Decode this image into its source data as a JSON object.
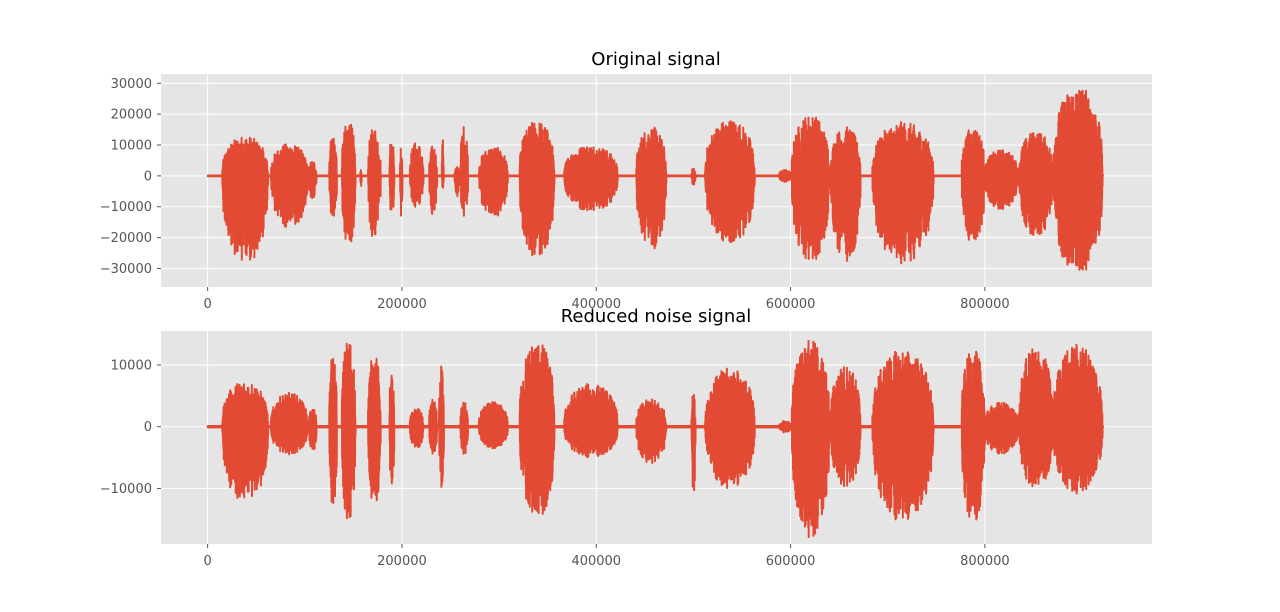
{
  "chart_data": [
    {
      "type": "line",
      "title": "Original signal",
      "xlim": [
        -48000,
        972000
      ],
      "ylim": [
        -36000,
        33000
      ],
      "xticks": [
        0,
        200000,
        400000,
        600000,
        800000
      ],
      "xtick_labels": [
        "0",
        "200000",
        "400000",
        "600000",
        "800000"
      ],
      "yticks": [
        -30000,
        -20000,
        -10000,
        0,
        10000,
        20000,
        30000
      ],
      "ytick_labels": [
        "−30000",
        "−20000",
        "−10000",
        "0",
        "10000",
        "20000",
        "30000"
      ],
      "grid": true,
      "color": "#E24A33",
      "series": [
        {
          "x_start": 0,
          "x_end": 921600,
          "bursts": [
            {
              "x": [
                15000,
                62000
              ],
              "min": -28500,
              "max": 13000
            },
            {
              "x": [
                65000,
                103000
              ],
              "min": -17000,
              "max": 10500
            },
            {
              "x": [
                104000,
                112000
              ],
              "min": -8000,
              "max": 5000
            },
            {
              "x": [
                125000,
                133000
              ],
              "min": -15000,
              "max": 14000
            },
            {
              "x": [
                138000,
                152000
              ],
              "min": -23000,
              "max": 18000
            },
            {
              "x": [
                157000,
                158500
              ],
              "min": -3500,
              "max": 2000
            },
            {
              "x": [
                165000,
                178000
              ],
              "min": -21000,
              "max": 16000
            },
            {
              "x": [
                187000,
                192000
              ],
              "min": -14000,
              "max": 13000
            },
            {
              "x": [
                198000,
                200500
              ],
              "min": -16000,
              "max": 11000
            },
            {
              "x": [
                208000,
                222000
              ],
              "min": -10500,
              "max": 11000
            },
            {
              "x": [
                228000,
                236000
              ],
              "min": -13000,
              "max": 10000
            },
            {
              "x": [
                241000,
                243000
              ],
              "min": -4000,
              "max": 12000
            },
            {
              "x": [
                254000,
                259000
              ],
              "min": -7000,
              "max": 3000
            },
            {
              "x": [
                260000,
                268000
              ],
              "min": -13500,
              "max": 16500
            },
            {
              "x": [
                279000,
                309000
              ],
              "min": -13500,
              "max": 9500
            },
            {
              "x": [
                321000,
                357000
              ],
              "min": -27000,
              "max": 18000
            },
            {
              "x": [
                367000,
                422000
              ],
              "min": -12000,
              "max": 10000
            },
            {
              "x": [
                441000,
                472000
              ],
              "min": -24000,
              "max": 16000
            },
            {
              "x": [
                498000,
                502000
              ],
              "min": -3000,
              "max": 2500
            },
            {
              "x": [
                512000,
                563000
              ],
              "min": -22500,
              "max": 18500
            },
            {
              "x": [
                588000,
                600000
              ],
              "min": -2000,
              "max": 2000
            },
            {
              "x": [
                601000,
                640000
              ],
              "min": -28500,
              "max": 20000
            },
            {
              "x": [
                641000,
                672000
              ],
              "min": -28000,
              "max": 16000
            },
            {
              "x": [
                684000,
                747000
              ],
              "min": -28500,
              "max": 17500
            },
            {
              "x": [
                776000,
                800000
              ],
              "min": -22500,
              "max": 16000
            },
            {
              "x": [
                800000,
                834000
              ],
              "min": -11000,
              "max": 8500
            },
            {
              "x": [
                835000,
                870000
              ],
              "min": -20000,
              "max": 14500
            },
            {
              "x": [
                870000,
                921000
              ],
              "min": -32500,
              "max": 29500
            }
          ]
        }
      ]
    },
    {
      "type": "line",
      "title": "Reduced noise signal",
      "xlim": [
        -48000,
        972000
      ],
      "ylim": [
        -19000,
        15500
      ],
      "xticks": [
        0,
        200000,
        400000,
        600000,
        800000
      ],
      "xtick_labels": [
        "0",
        "200000",
        "400000",
        "600000",
        "800000"
      ],
      "yticks": [
        -10000,
        0,
        10000
      ],
      "ytick_labels": [
        "−10000",
        "0",
        "10000"
      ],
      "grid": true,
      "color": "#E24A33",
      "series": [
        {
          "x_start": 0,
          "x_end": 921600,
          "bursts": [
            {
              "x": [
                15000,
                62000
              ],
              "min": -12500,
              "max": 7500
            },
            {
              "x": [
                65000,
                103000
              ],
              "min": -4500,
              "max": 5500
            },
            {
              "x": [
                104000,
                112000
              ],
              "min": -4000,
              "max": 3000
            },
            {
              "x": [
                125000,
                133000
              ],
              "min": -13500,
              "max": 12000
            },
            {
              "x": [
                138000,
                152000
              ],
              "min": -16000,
              "max": 14500
            },
            {
              "x": [
                165000,
                178000
              ],
              "min": -13000,
              "max": 12000
            },
            {
              "x": [
                187000,
                192000
              ],
              "min": -10000,
              "max": 9000
            },
            {
              "x": [
                208000,
                222000
              ],
              "min": -3500,
              "max": 3000
            },
            {
              "x": [
                228000,
                236000
              ],
              "min": -4500,
              "max": 4500
            },
            {
              "x": [
                238000,
                243000
              ],
              "min": -11000,
              "max": 11000
            },
            {
              "x": [
                260000,
                268000
              ],
              "min": -4500,
              "max": 4000
            },
            {
              "x": [
                279000,
                309000
              ],
              "min": -3500,
              "max": 4000
            },
            {
              "x": [
                321000,
                357000
              ],
              "min": -15000,
              "max": 14000
            },
            {
              "x": [
                367000,
                422000
              ],
              "min": -5000,
              "max": 7000
            },
            {
              "x": [
                441000,
                472000
              ],
              "min": -6000,
              "max": 4500
            },
            {
              "x": [
                498000,
                502000
              ],
              "min": -11000,
              "max": 5500
            },
            {
              "x": [
                512000,
                563000
              ],
              "min": -10000,
              "max": 9500
            },
            {
              "x": [
                588000,
                600000
              ],
              "min": -1000,
              "max": 1000
            },
            {
              "x": [
                601000,
                640000
              ],
              "min": -18000,
              "max": 14000
            },
            {
              "x": [
                641000,
                672000
              ],
              "min": -10000,
              "max": 10000
            },
            {
              "x": [
                684000,
                747000
              ],
              "min": -15500,
              "max": 12500
            },
            {
              "x": [
                776000,
                800000
              ],
              "min": -15500,
              "max": 12500
            },
            {
              "x": [
                800000,
                834000
              ],
              "min": -4500,
              "max": 4000
            },
            {
              "x": [
                835000,
                870000
              ],
              "min": -10000,
              "max": 13000
            },
            {
              "x": [
                870000,
                921000
              ],
              "min": -11000,
              "max": 13500
            }
          ]
        }
      ]
    }
  ]
}
